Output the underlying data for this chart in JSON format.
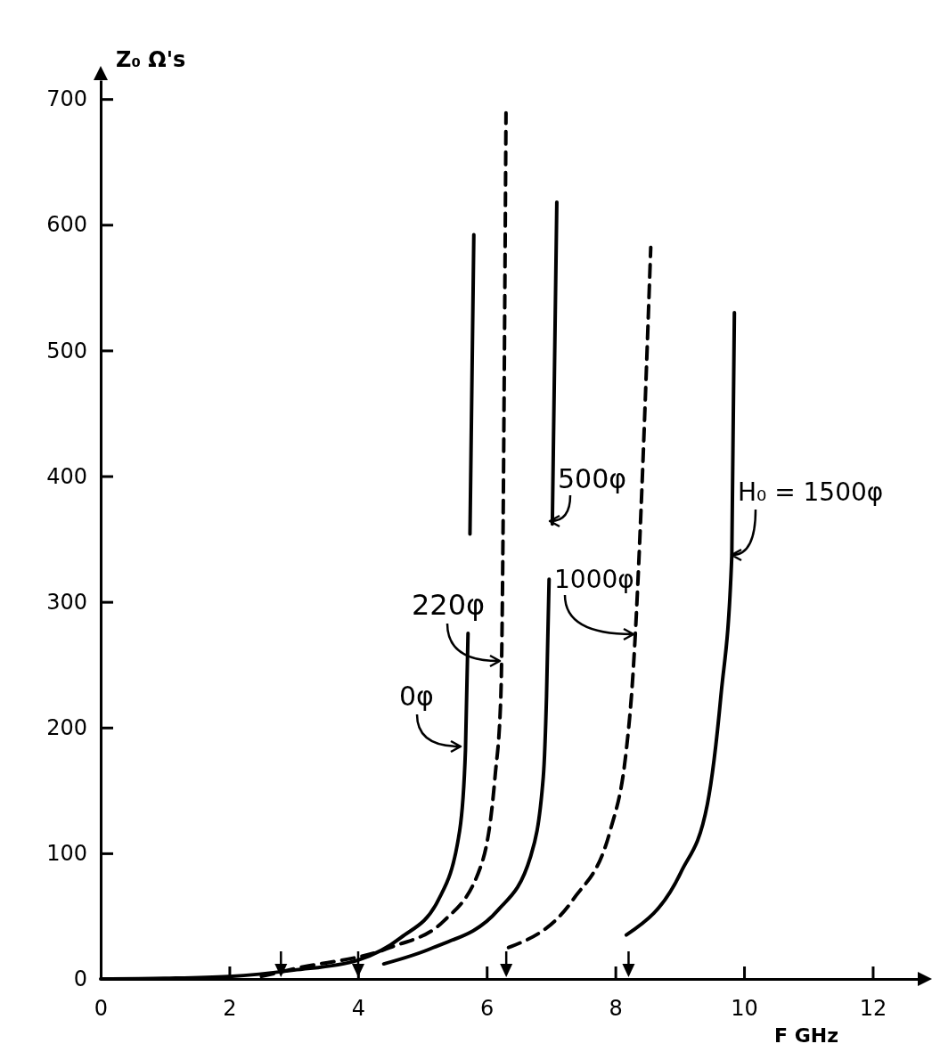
{
  "chart_data": {
    "type": "line",
    "xlabel": "F GHz",
    "ylabel": "Z₀ Ω's",
    "xlim": [
      0,
      12.7
    ],
    "ylim": [
      0,
      715
    ],
    "xticks": [
      0,
      2,
      4,
      6,
      8,
      10,
      12
    ],
    "yticks": [
      0,
      100,
      200,
      300,
      400,
      500,
      600,
      700
    ],
    "grid": false,
    "marker": "none",
    "series": [
      {
        "name": "0φ",
        "color": "#000000",
        "line_style": "solid",
        "x": [
          0,
          1,
          2,
          3,
          4,
          4.67,
          5.25,
          5.58,
          5.67,
          5.71,
          null,
          5.74,
          5.8
        ],
        "values": [
          0,
          0.5,
          2,
          7,
          15,
          33,
          63,
          118,
          182,
          275,
          null,
          354,
          592
        ]
      },
      {
        "name": "220φ",
        "color": "#000000",
        "line_style": "dashed",
        "x": [
          2.5,
          3,
          4.5,
          5.33,
          5.93,
          6.13,
          6.22,
          6.3
        ],
        "values": [
          2,
          8,
          25,
          46,
          93,
          161,
          225,
          689
        ]
      },
      {
        "name": "500φ",
        "color": "#000000",
        "line_style": "solid",
        "x": [
          4.4,
          5.17,
          6.18,
          6.68,
          6.88,
          6.93,
          6.97,
          null,
          7.02,
          7.09
        ],
        "values": [
          12,
          25,
          55,
          97,
          161,
          225,
          318,
          null,
          362,
          618
        ]
      },
      {
        "name": "1000φ",
        "color": "#000000",
        "line_style": "dashed",
        "x": [
          6.34,
          7.34,
          7.92,
          8.17,
          8.25,
          8.55
        ],
        "values": [
          25,
          63,
          118,
          182,
          225,
          582
        ]
      },
      {
        "name": "H₀ = 1500φ",
        "color": "#000000",
        "line_style": "solid",
        "x": [
          8.17,
          9.02,
          9.43,
          9.64,
          9.81,
          9.85
        ],
        "values": [
          35,
          85,
          139,
          225,
          337,
          530
        ]
      }
    ]
  }
}
